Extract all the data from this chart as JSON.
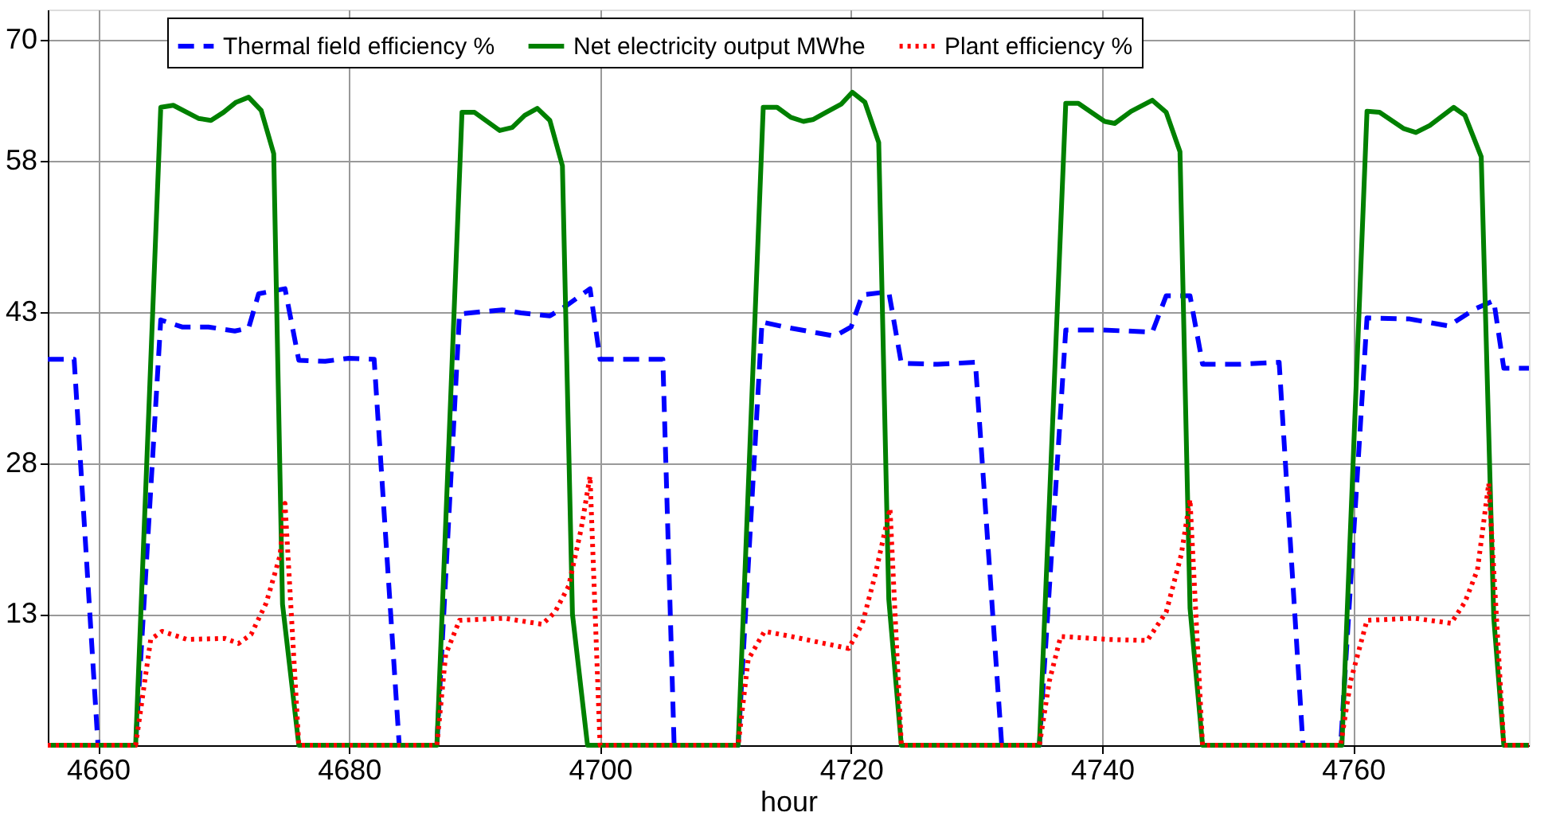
{
  "chart_data": {
    "type": "line",
    "xlabel": "hour",
    "xlim": [
      4656,
      4774
    ],
    "xticks": [
      4660,
      4680,
      4700,
      4720,
      4740,
      4760
    ],
    "ylim": [
      0,
      73
    ],
    "yticks": [
      13,
      28,
      43,
      58,
      70
    ],
    "grid": true,
    "legend": "top",
    "series": [
      {
        "name": "Thermal field efficiency %",
        "color": "#0000ff",
        "line_style": "dashed",
        "x": [
          4656,
          4658.1,
          4660,
          4663,
          4665,
          4666.7,
          4668.8,
          4670.9,
          4672,
          4672.8,
          4674.9,
          4676,
          4678.1,
          4680,
          4682,
          4684,
          4687,
          4688.8,
          4692.2,
          4693.7,
          4696,
          4697.3,
          4699.2,
          4700,
          4702.5,
          4705,
          4705.9,
          4711,
          4712.9,
          4714.7,
          4718.7,
          4720,
          4720.9,
          4723,
          4724,
          4726.9,
          4729.9,
          4732,
          4735,
          4737.1,
          4740,
          4744,
          4745.1,
          4747,
          4748,
          4750.9,
          4754.1,
          4756,
          4759,
          4761.1,
          4764.5,
          4767.6,
          4769.7,
          4771.2,
          4772,
          4774
        ],
        "values": [
          38.3,
          38.3,
          0,
          0,
          42.2,
          41.5,
          41.5,
          41.1,
          41.4,
          44.8,
          45.3,
          38.2,
          38.1,
          38.4,
          38.3,
          0,
          0,
          42.8,
          43.2,
          42.9,
          42.6,
          43.6,
          45.3,
          38.3,
          38.3,
          38.3,
          0,
          0,
          42.0,
          41.5,
          40.6,
          41.5,
          44.7,
          45.0,
          37.9,
          37.8,
          38.0,
          0,
          0,
          41.2,
          41.2,
          41.0,
          44.6,
          44.6,
          37.8,
          37.8,
          38.0,
          0,
          0,
          42.4,
          42.3,
          41.6,
          43.3,
          44.1,
          37.4,
          37.4
        ]
      },
      {
        "name": "Net electricity output MWhe",
        "color": "#008000",
        "line_style": "solid",
        "x": [
          4656,
          4663,
          4665,
          4666,
          4668,
          4669,
          4670,
          4671,
          4672,
          4673,
          4674,
          4674.7,
          4676,
          4687,
          4689,
          4690,
          4692,
          4693,
          4694,
          4695,
          4696,
          4697,
          4697.8,
          4699,
          4711,
          4713,
          4714.1,
          4715.2,
          4716.2,
          4717,
          4718,
          4719.2,
          4720.1,
          4721.1,
          4722.2,
          4723,
          4724,
          4735,
          4737.1,
          4738.1,
          4740.2,
          4741,
          4742.3,
          4744,
          4745.1,
          4746.2,
          4747,
          4748,
          4759.1,
          4761.1,
          4762.1,
          4764,
          4765,
          4766.1,
          4768,
          4768.9,
          4770.2,
          4771.2,
          4772,
          4774
        ],
        "values": [
          0,
          0,
          63.3,
          63.5,
          62.2,
          62.0,
          62.8,
          63.8,
          64.3,
          63.0,
          58.7,
          14,
          0,
          0,
          62.8,
          62.8,
          61.0,
          61.3,
          62.5,
          63.2,
          62.0,
          57.5,
          13,
          0,
          0,
          63.3,
          63.3,
          62.3,
          61.9,
          62.1,
          62.8,
          63.6,
          64.8,
          63.8,
          59.8,
          14.5,
          0,
          0,
          63.7,
          63.7,
          61.9,
          61.7,
          62.9,
          64.0,
          62.8,
          58.9,
          13.6,
          0,
          0,
          62.9,
          62.8,
          61.2,
          60.8,
          61.5,
          63.3,
          62.5,
          58.4,
          12.6,
          0,
          0
        ]
      },
      {
        "name": "Plant efficiency %",
        "color": "#ff0000",
        "line_style": "dotted",
        "x": [
          4656,
          4663,
          4664.2,
          4665.1,
          4667.1,
          4670.1,
          4671.2,
          4672.2,
          4673.4,
          4674.5,
          4674.9,
          4676,
          4687,
          4687.7,
          4688.8,
          4692.4,
          4695.4,
          4696.4,
          4697.5,
          4698.5,
          4699.2,
          4700,
          4711,
          4711.8,
          4713.1,
          4715.2,
          4719.8,
          4720.9,
          4721.9,
          4723.1,
          4724,
          4735,
          4735.8,
          4736.7,
          4740.5,
          4743.6,
          4745.1,
          4746.3,
          4747,
          4748,
          4759,
          4759.8,
          4761.1,
          4764.9,
          4767.8,
          4768.9,
          4769.9,
          4770.8,
          4772,
          4774
        ],
        "values": [
          0,
          0,
          10.5,
          11.3,
          10.5,
          10.6,
          10.1,
          11.0,
          14.1,
          18.8,
          24.0,
          0,
          0,
          9.0,
          12.4,
          12.6,
          12.0,
          13.2,
          15.8,
          21.5,
          26.7,
          0,
          0,
          8.5,
          11.3,
          10.8,
          9.6,
          12.1,
          16.8,
          23.5,
          0,
          0,
          6.4,
          10.8,
          10.5,
          10.4,
          13.2,
          18.9,
          24.4,
          0,
          0,
          6.4,
          12.4,
          12.6,
          12.1,
          14.2,
          17.4,
          26.0,
          0,
          0
        ]
      }
    ]
  }
}
